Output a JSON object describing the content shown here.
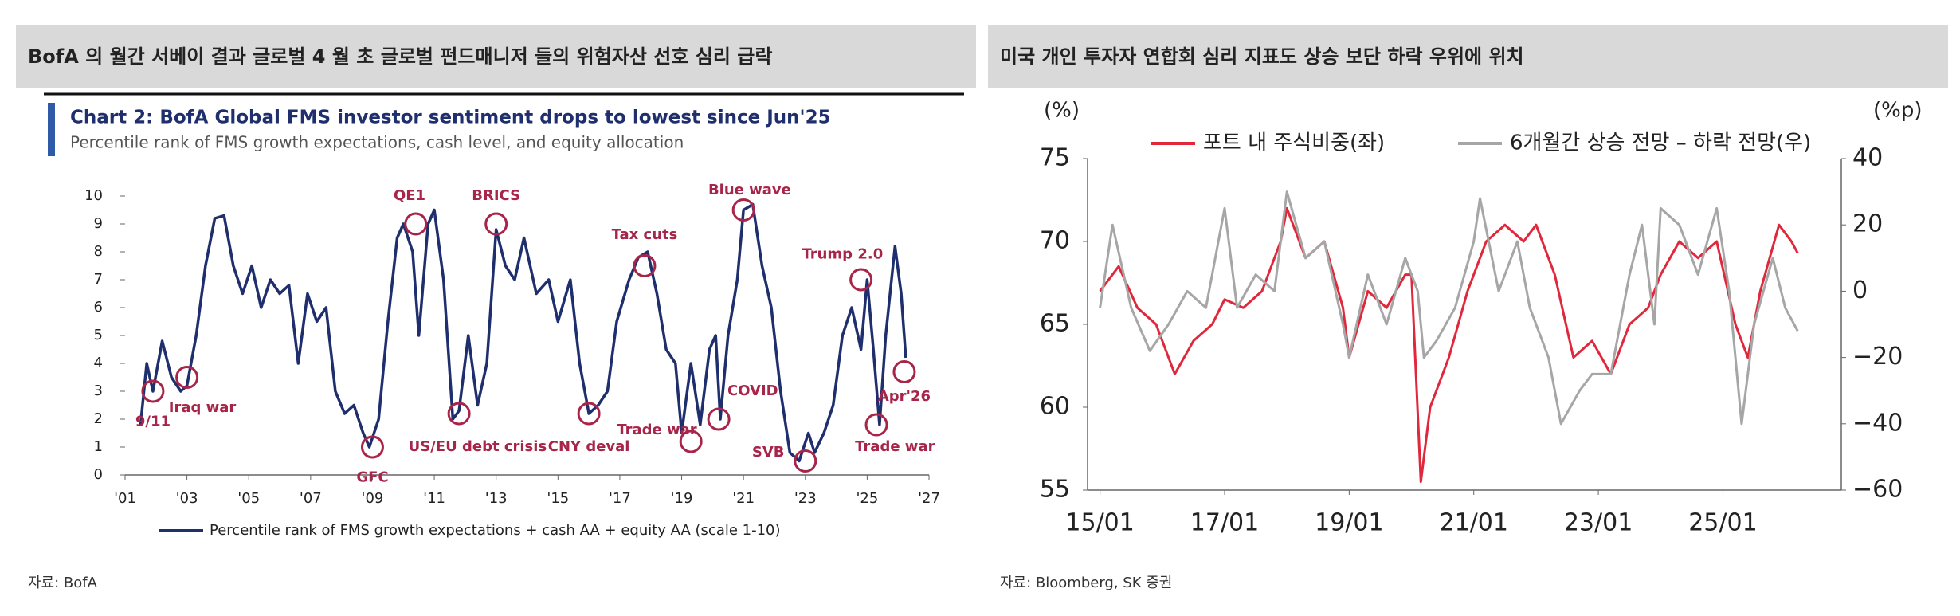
{
  "headers": [
    "BofA 의 월간 서베이 결과 글로벌 4 월 초 글로벌 펀드매니저 들의 위험자산 선호 심리 급락",
    "미국 개인 투자자 연합회 심리 지표도 상승 보단 하락 우위에 위치"
  ],
  "sources": [
    "자료: BofA",
    "자료: Bloomberg, SK 증권"
  ],
  "chart_data": [
    {
      "type": "line",
      "title": "Chart 2: BofA Global FMS investor sentiment drops to lowest since Jun'25",
      "subtitle": "Percentile rank of FMS growth expectations, cash level, and equity allocation",
      "xlim": [
        2001,
        2027
      ],
      "ylim": [
        0,
        10
      ],
      "xticks": [
        {
          "value": 2001,
          "label": "'01"
        },
        {
          "value": 2003,
          "label": "'03"
        },
        {
          "value": 2005,
          "label": "'05"
        },
        {
          "value": 2007,
          "label": "'07"
        },
        {
          "value": 2009,
          "label": "'09"
        },
        {
          "value": 2011,
          "label": "'11"
        },
        {
          "value": 2013,
          "label": "'13"
        },
        {
          "value": 2015,
          "label": "'15"
        },
        {
          "value": 2017,
          "label": "'17"
        },
        {
          "value": 2019,
          "label": "'19"
        },
        {
          "value": 2021,
          "label": "'21"
        },
        {
          "value": 2023,
          "label": "'23"
        },
        {
          "value": 2025,
          "label": "'25"
        },
        {
          "value": 2027,
          "label": "'27"
        }
      ],
      "yticks": [
        0,
        1,
        2,
        3,
        4,
        5,
        6,
        7,
        8,
        9,
        10
      ],
      "legend": "bottom",
      "series": [
        {
          "name": "Percentile rank of FMS growth expectations + cash AA + equity AA (scale 1-10)",
          "color": "#1f2f6e",
          "x": [
            2001.5,
            2001.7,
            2001.9,
            2002.2,
            2002.5,
            2002.8,
            2003.0,
            2003.3,
            2003.6,
            2003.9,
            2004.2,
            2004.5,
            2004.8,
            2005.1,
            2005.4,
            2005.7,
            2006.0,
            2006.3,
            2006.6,
            2006.9,
            2007.2,
            2007.5,
            2007.8,
            2008.1,
            2008.4,
            2008.7,
            2008.9,
            2009.2,
            2009.5,
            2009.8,
            2010.0,
            2010.3,
            2010.5,
            2010.8,
            2011.0,
            2011.3,
            2011.6,
            2011.8,
            2012.1,
            2012.4,
            2012.7,
            2013.0,
            2013.3,
            2013.6,
            2013.9,
            2014.3,
            2014.7,
            2015.0,
            2015.4,
            2015.7,
            2016.0,
            2016.3,
            2016.6,
            2016.9,
            2017.3,
            2017.6,
            2017.9,
            2018.2,
            2018.5,
            2018.8,
            2019.0,
            2019.3,
            2019.6,
            2019.9,
            2020.1,
            2020.25,
            2020.5,
            2020.8,
            2021.0,
            2021.3,
            2021.6,
            2021.9,
            2022.2,
            2022.5,
            2022.8,
            2023.1,
            2023.3,
            2023.6,
            2023.9,
            2024.2,
            2024.5,
            2024.8,
            2025.0,
            2025.2,
            2025.4,
            2025.6,
            2025.9,
            2026.1,
            2026.25
          ],
          "values": [
            1.8,
            4,
            3,
            4.8,
            3.5,
            3.0,
            3.2,
            5,
            7.5,
            9.2,
            9.3,
            7.5,
            6.5,
            7.5,
            6,
            7,
            6.5,
            6.8,
            4,
            6.5,
            5.5,
            6,
            3,
            2.2,
            2.5,
            1.5,
            1.0,
            2,
            5.5,
            8.5,
            9,
            8,
            5,
            9,
            9.5,
            7,
            2,
            2.3,
            5,
            2.5,
            4,
            8.8,
            7.5,
            7,
            8.5,
            6.5,
            7,
            5.5,
            7,
            4,
            2.2,
            2.5,
            3,
            5.5,
            7,
            7.8,
            8,
            6.5,
            4.5,
            4,
            1.5,
            4,
            1.8,
            4.5,
            5,
            2,
            5,
            7,
            9.5,
            9.7,
            7.5,
            6,
            3,
            0.8,
            0.5,
            1.5,
            0.8,
            1.5,
            2.5,
            5,
            6,
            4.5,
            7,
            4.5,
            1.8,
            5,
            8.2,
            6.5,
            4.2
          ]
        }
      ],
      "annotations": [
        "9/11",
        "Iraq war",
        "GFC",
        "QE1",
        "US/EU debt crisis",
        "BRICS",
        "CNY deval",
        "Tax cuts",
        "Trade war",
        "COVID",
        "Blue wave",
        "SVB",
        "Trump 2.0",
        "Trade war",
        "Apr'26"
      ],
      "annotation_color": "#a8254a"
    },
    {
      "type": "line",
      "y_label": "(%)",
      "y2_label": "(%p)",
      "xlim": [
        2014.8,
        2026.9
      ],
      "ylim": [
        55,
        75
      ],
      "y2lim": [
        -60,
        40
      ],
      "xticks": [
        {
          "value": 2015,
          "label": "15/01"
        },
        {
          "value": 2017,
          "label": "17/01"
        },
        {
          "value": 2019,
          "label": "19/01"
        },
        {
          "value": 2021,
          "label": "21/01"
        },
        {
          "value": 2023,
          "label": "23/01"
        },
        {
          "value": 2025,
          "label": "25/01"
        }
      ],
      "yticks": [
        55,
        60,
        65,
        70,
        75
      ],
      "y2ticks": [
        {
          "value": -60,
          "label": "−60"
        },
        {
          "value": -40,
          "label": "−40"
        },
        {
          "value": -20,
          "label": "−20"
        },
        0,
        20,
        40
      ],
      "legend": "top",
      "series": [
        {
          "name": "포트 내 주식비중(좌)",
          "color": "#e0283c",
          "x": [
            2015.0,
            2015.3,
            2015.6,
            2015.9,
            2016.2,
            2016.5,
            2016.8,
            2017.0,
            2017.3,
            2017.6,
            2017.9,
            2018.0,
            2018.3,
            2018.6,
            2018.9,
            2019.0,
            2019.3,
            2019.6,
            2019.9,
            2020.0,
            2020.15,
            2020.3,
            2020.6,
            2020.9,
            2021.2,
            2021.5,
            2021.8,
            2022.0,
            2022.3,
            2022.6,
            2022.9,
            2023.2,
            2023.5,
            2023.8,
            2024.0,
            2024.3,
            2024.6,
            2024.9,
            2025.2,
            2025.4,
            2025.6,
            2025.9,
            2026.1,
            2026.2
          ],
          "values": [
            67,
            68.5,
            66,
            65,
            62,
            64,
            65,
            66.5,
            66,
            67,
            70,
            72,
            69,
            70,
            66,
            63,
            67,
            66,
            68,
            68,
            55.5,
            60,
            63,
            67,
            70,
            71,
            70,
            71,
            68,
            63,
            64,
            62,
            65,
            66,
            68,
            70,
            69,
            70,
            65,
            63,
            67,
            71,
            70,
            69.3
          ]
        },
        {
          "name": "6개월간 상승 전망 – 하락 전망(우)",
          "color": "#a6a6a6",
          "axis": "y2",
          "x": [
            2015.0,
            2015.2,
            2015.5,
            2015.8,
            2016.1,
            2016.4,
            2016.7,
            2017.0,
            2017.2,
            2017.5,
            2017.8,
            2018.0,
            2018.3,
            2018.6,
            2018.9,
            2019.0,
            2019.3,
            2019.6,
            2019.9,
            2020.1,
            2020.2,
            2020.4,
            2020.7,
            2021.0,
            2021.1,
            2021.4,
            2021.7,
            2021.9,
            2022.2,
            2022.4,
            2022.7,
            2022.9,
            2023.2,
            2023.5,
            2023.7,
            2023.9,
            2024.0,
            2024.3,
            2024.6,
            2024.9,
            2025.1,
            2025.3,
            2025.5,
            2025.8,
            2026.0,
            2026.2
          ],
          "values": [
            -5,
            20,
            -5,
            -18,
            -10,
            0,
            -5,
            25,
            -5,
            5,
            0,
            30,
            10,
            15,
            -10,
            -20,
            5,
            -10,
            10,
            0,
            -20,
            -15,
            -5,
            15,
            28,
            0,
            15,
            -5,
            -20,
            -40,
            -30,
            -25,
            -25,
            5,
            20,
            -10,
            25,
            20,
            5,
            25,
            0,
            -40,
            -10,
            10,
            -5,
            -12
          ]
        }
      ]
    }
  ]
}
